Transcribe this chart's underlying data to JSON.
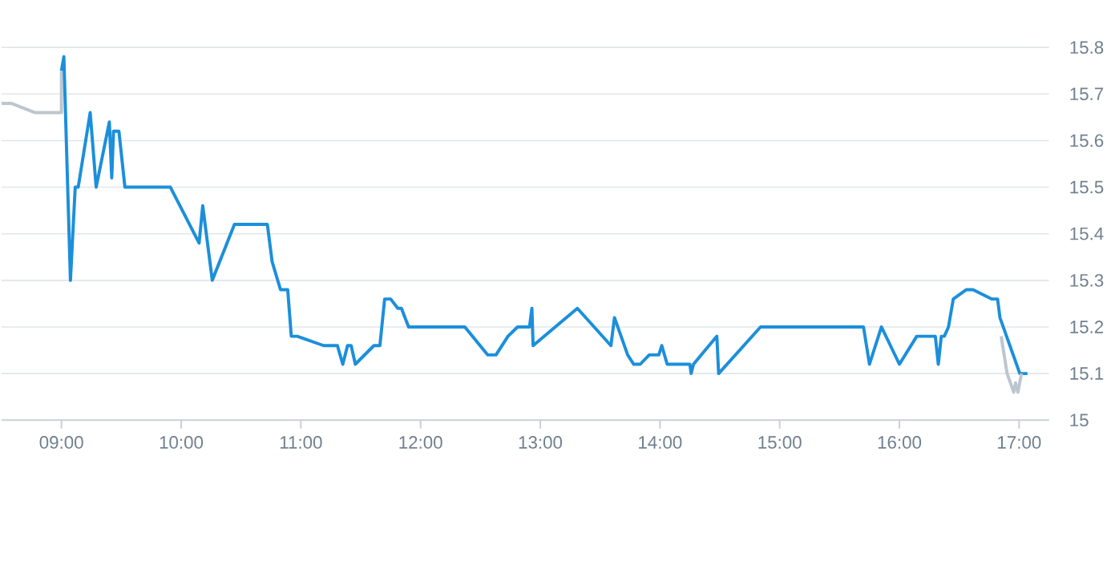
{
  "chart_data": {
    "type": "line",
    "xlim": [
      8.5,
      17.25
    ],
    "ylim": [
      15,
      15.8
    ],
    "xticks": [
      {
        "value": 9,
        "label": "09:00"
      },
      {
        "value": 10,
        "label": "10:00"
      },
      {
        "value": 11,
        "label": "11:00"
      },
      {
        "value": 12,
        "label": "12:00"
      },
      {
        "value": 13,
        "label": "13:00"
      },
      {
        "value": 14,
        "label": "14:00"
      },
      {
        "value": 15,
        "label": "15:00"
      },
      {
        "value": 16,
        "label": "16:00"
      },
      {
        "value": 17,
        "label": "17:00"
      }
    ],
    "yticks": [
      15,
      15.1,
      15.2,
      15.3,
      15.4,
      15.5,
      15.6,
      15.7,
      15.8
    ],
    "grid": "y",
    "marker": "none",
    "line_style": "solid",
    "series": [
      {
        "color": "#bcc6cf",
        "x": [
          8.5,
          8.58,
          8.78,
          9.0,
          9.0
        ],
        "values": [
          15.68,
          15.68,
          15.66,
          15.66,
          15.75
        ]
      },
      {
        "color": "#1b8fdb",
        "x": [
          9.0,
          9.02,
          9.075,
          9.115,
          9.14,
          9.24,
          9.29,
          9.4,
          9.42,
          9.435,
          9.48,
          9.53,
          9.91,
          10.15,
          10.18,
          10.26,
          10.445,
          10.72,
          10.76,
          10.83,
          10.89,
          10.92,
          10.97,
          11.19,
          11.305,
          11.35,
          11.39,
          11.42,
          11.455,
          11.61,
          11.66,
          11.7,
          11.75,
          11.81,
          11.84,
          11.9,
          12.37,
          12.56,
          12.63,
          12.73,
          12.81,
          12.91,
          12.93,
          12.94,
          13.31,
          13.59,
          13.62,
          13.73,
          13.78,
          13.835,
          13.91,
          13.99,
          14.015,
          14.06,
          14.25,
          14.26,
          14.28,
          14.475,
          14.49,
          14.84,
          15.7,
          15.75,
          15.85,
          16.0,
          16.145,
          16.3,
          16.325,
          16.35,
          16.375,
          16.41,
          16.45,
          16.56,
          16.615,
          16.77,
          16.82,
          16.84,
          17.006,
          17.07
        ],
        "values": [
          15.75,
          15.78,
          15.3,
          15.5,
          15.5,
          15.66,
          15.5,
          15.64,
          15.52,
          15.62,
          15.62,
          15.5,
          15.5,
          15.38,
          15.46,
          15.3,
          15.42,
          15.42,
          15.34,
          15.28,
          15.28,
          15.18,
          15.18,
          15.16,
          15.16,
          15.12,
          15.16,
          15.16,
          15.12,
          15.16,
          15.16,
          15.26,
          15.26,
          15.24,
          15.24,
          15.2,
          15.2,
          15.14,
          15.14,
          15.18,
          15.2,
          15.2,
          15.24,
          15.16,
          15.24,
          15.16,
          15.22,
          15.14,
          15.12,
          15.12,
          15.14,
          15.14,
          15.16,
          15.12,
          15.12,
          15.1,
          15.12,
          15.18,
          15.1,
          15.2,
          15.2,
          15.12,
          15.2,
          15.12,
          15.18,
          15.18,
          15.12,
          15.18,
          15.18,
          15.2,
          15.26,
          15.28,
          15.28,
          15.26,
          15.26,
          15.22,
          15.1,
          15.1
        ]
      },
      {
        "color": "#bcc6cf",
        "x": [
          16.85,
          16.9,
          16.955,
          16.97,
          16.99,
          17.02
        ],
        "values": [
          15.18,
          15.1,
          15.06,
          15.08,
          15.06,
          15.1
        ]
      }
    ]
  }
}
